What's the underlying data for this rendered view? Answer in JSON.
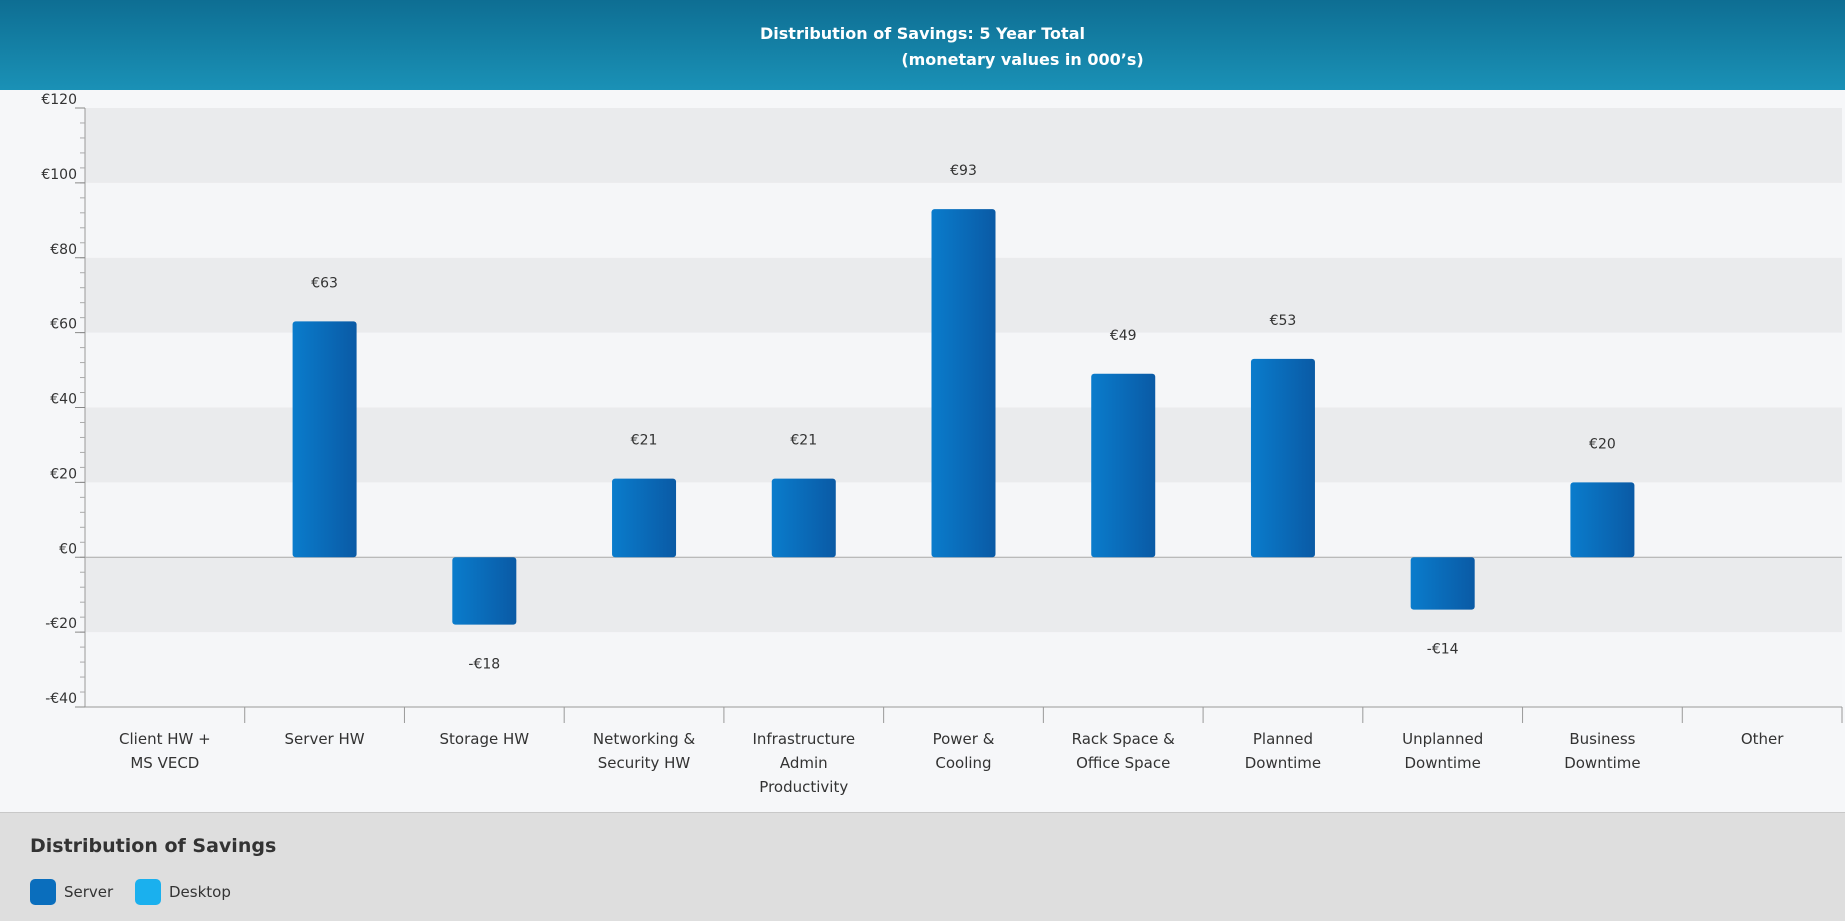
{
  "chart_data": {
    "type": "bar",
    "title": "Distribution of Savings: 5 Year Total",
    "subtitle": "(monetary values in 000’s)",
    "categories": [
      "Client HW +\nMS VECD",
      "Server HW",
      "Storage HW",
      "Networking &\nSecurity HW",
      "Infrastructure\nAdmin\nProductivity",
      "Power &\nCooling",
      "Rack Space &\nOffice Space",
      "Planned\nDowntime",
      "Unplanned\nDowntime",
      "Business\nDowntime",
      "Other"
    ],
    "series": [
      {
        "name": "Server",
        "color": "#0a6ebd",
        "values": [
          null,
          63,
          -18,
          21,
          21,
          93,
          49,
          53,
          -14,
          20,
          null
        ],
        "value_labels": [
          null,
          "€63",
          "-€18",
          "€21",
          "€21",
          "€93",
          "€49",
          "€53",
          "-€14",
          "€20",
          null
        ]
      },
      {
        "name": "Desktop",
        "color": "#1ab0ee",
        "values": [
          null,
          null,
          null,
          null,
          null,
          null,
          null,
          null,
          null,
          null,
          null
        ]
      }
    ],
    "ylim": [
      -40,
      120
    ],
    "yticks": [
      {
        "value": -40,
        "label": "-€40"
      },
      {
        "value": -20,
        "label": "-€20"
      },
      {
        "value": 0,
        "label": "€0"
      },
      {
        "value": 20,
        "label": "€20"
      },
      {
        "value": 40,
        "label": "€40"
      },
      {
        "value": 60,
        "label": "€60"
      },
      {
        "value": 80,
        "label": "€80"
      },
      {
        "value": 100,
        "label": "€100"
      },
      {
        "value": 120,
        "label": "€120"
      }
    ],
    "grid": true,
    "legend": {
      "title": "Distribution of Savings",
      "position": "bottom-left"
    }
  }
}
